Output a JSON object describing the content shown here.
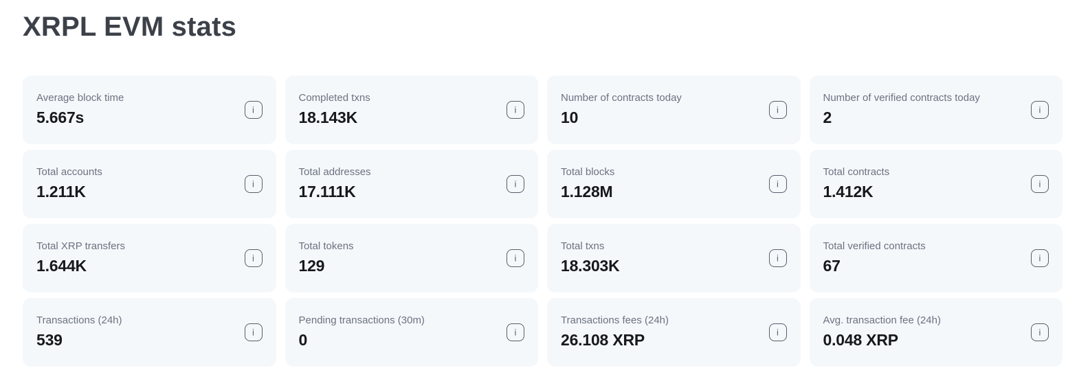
{
  "page": {
    "title": "XRPL EVM stats"
  },
  "icons": {
    "info": "i"
  },
  "colors": {
    "card_bg": "#f5f8fb",
    "label_text": "#6b7280",
    "value_text": "#16181b",
    "title_text": "#3c4149",
    "icon_border": "#555e6b"
  },
  "stats": {
    "cards": [
      {
        "label": "Average block time",
        "value": "5.667s"
      },
      {
        "label": "Completed txns",
        "value": "18.143K"
      },
      {
        "label": "Number of contracts today",
        "value": "10"
      },
      {
        "label": "Number of verified contracts today",
        "value": "2"
      },
      {
        "label": "Total accounts",
        "value": "1.211K"
      },
      {
        "label": "Total addresses",
        "value": "17.111K"
      },
      {
        "label": "Total blocks",
        "value": "1.128M"
      },
      {
        "label": "Total contracts",
        "value": "1.412K"
      },
      {
        "label": "Total XRP transfers",
        "value": "1.644K"
      },
      {
        "label": "Total tokens",
        "value": "129"
      },
      {
        "label": "Total txns",
        "value": "18.303K"
      },
      {
        "label": "Total verified contracts",
        "value": "67"
      },
      {
        "label": "Transactions (24h)",
        "value": "539"
      },
      {
        "label": "Pending transactions (30m)",
        "value": "0"
      },
      {
        "label": "Transactions fees (24h)",
        "value": "26.108 XRP"
      },
      {
        "label": "Avg. transaction fee (24h)",
        "value": "0.048 XRP"
      }
    ]
  }
}
